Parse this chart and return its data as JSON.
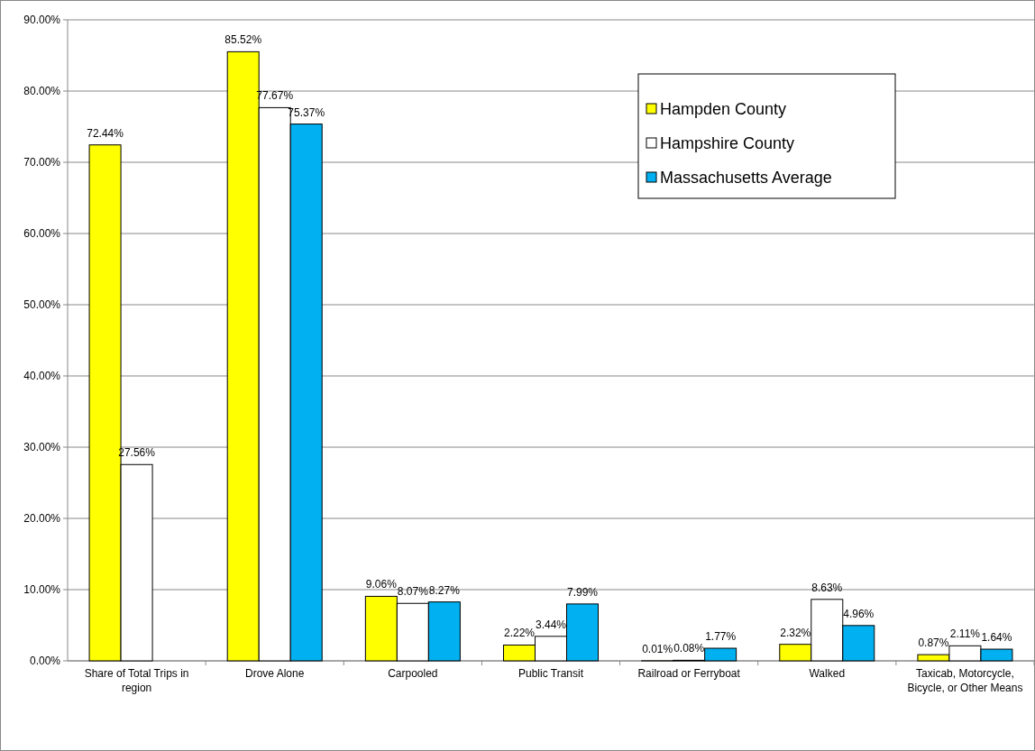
{
  "chart_data": {
    "type": "bar",
    "categories": [
      "Share of Total Trips in region",
      "Drove Alone",
      "Carpooled",
      "Public Transit",
      "Railroad or Ferryboat",
      "Walked",
      "Taxicab, Motorcycle, Bicycle, or Other Means"
    ],
    "series": [
      {
        "name": "Hampden County",
        "color": "#ffff00",
        "values": [
          72.44,
          85.52,
          9.06,
          2.22,
          0.01,
          2.32,
          0.87
        ],
        "value_labels": [
          "72.44%",
          "85.52%",
          "9.06%",
          "2.22%",
          "0.01%",
          "2.32%",
          "0.87%"
        ]
      },
      {
        "name": "Hampshire County",
        "color": "#ffffff",
        "values": [
          27.56,
          77.67,
          8.07,
          3.44,
          0.08,
          8.63,
          2.11
        ],
        "value_labels": [
          "27.56%",
          "77.67%",
          "8.07%",
          "3.44%",
          "0.08%",
          "8.63%",
          "2.11%"
        ]
      },
      {
        "name": "Massachusetts Average",
        "color": "#00b0f0",
        "values": [
          null,
          75.37,
          8.27,
          7.99,
          1.77,
          4.96,
          1.64
        ],
        "value_labels": [
          null,
          "75.37%",
          "8.27%",
          "7.99%",
          "1.77%",
          "4.96%",
          "1.64%"
        ]
      }
    ],
    "ylim": [
      0,
      90
    ],
    "yticks": [
      {
        "value": 0,
        "label": "0.00%"
      },
      {
        "value": 10,
        "label": "10.00%"
      },
      {
        "value": 20,
        "label": "20.00%"
      },
      {
        "value": 30,
        "label": "30.00%"
      },
      {
        "value": 40,
        "label": "40.00%"
      },
      {
        "value": 50,
        "label": "50.00%"
      },
      {
        "value": 60,
        "label": "60.00%"
      },
      {
        "value": 70,
        "label": "70.00%"
      },
      {
        "value": 80,
        "label": "80.00%"
      },
      {
        "value": 90,
        "label": "90.00%"
      }
    ],
    "grid": "y",
    "legend": "top right"
  }
}
